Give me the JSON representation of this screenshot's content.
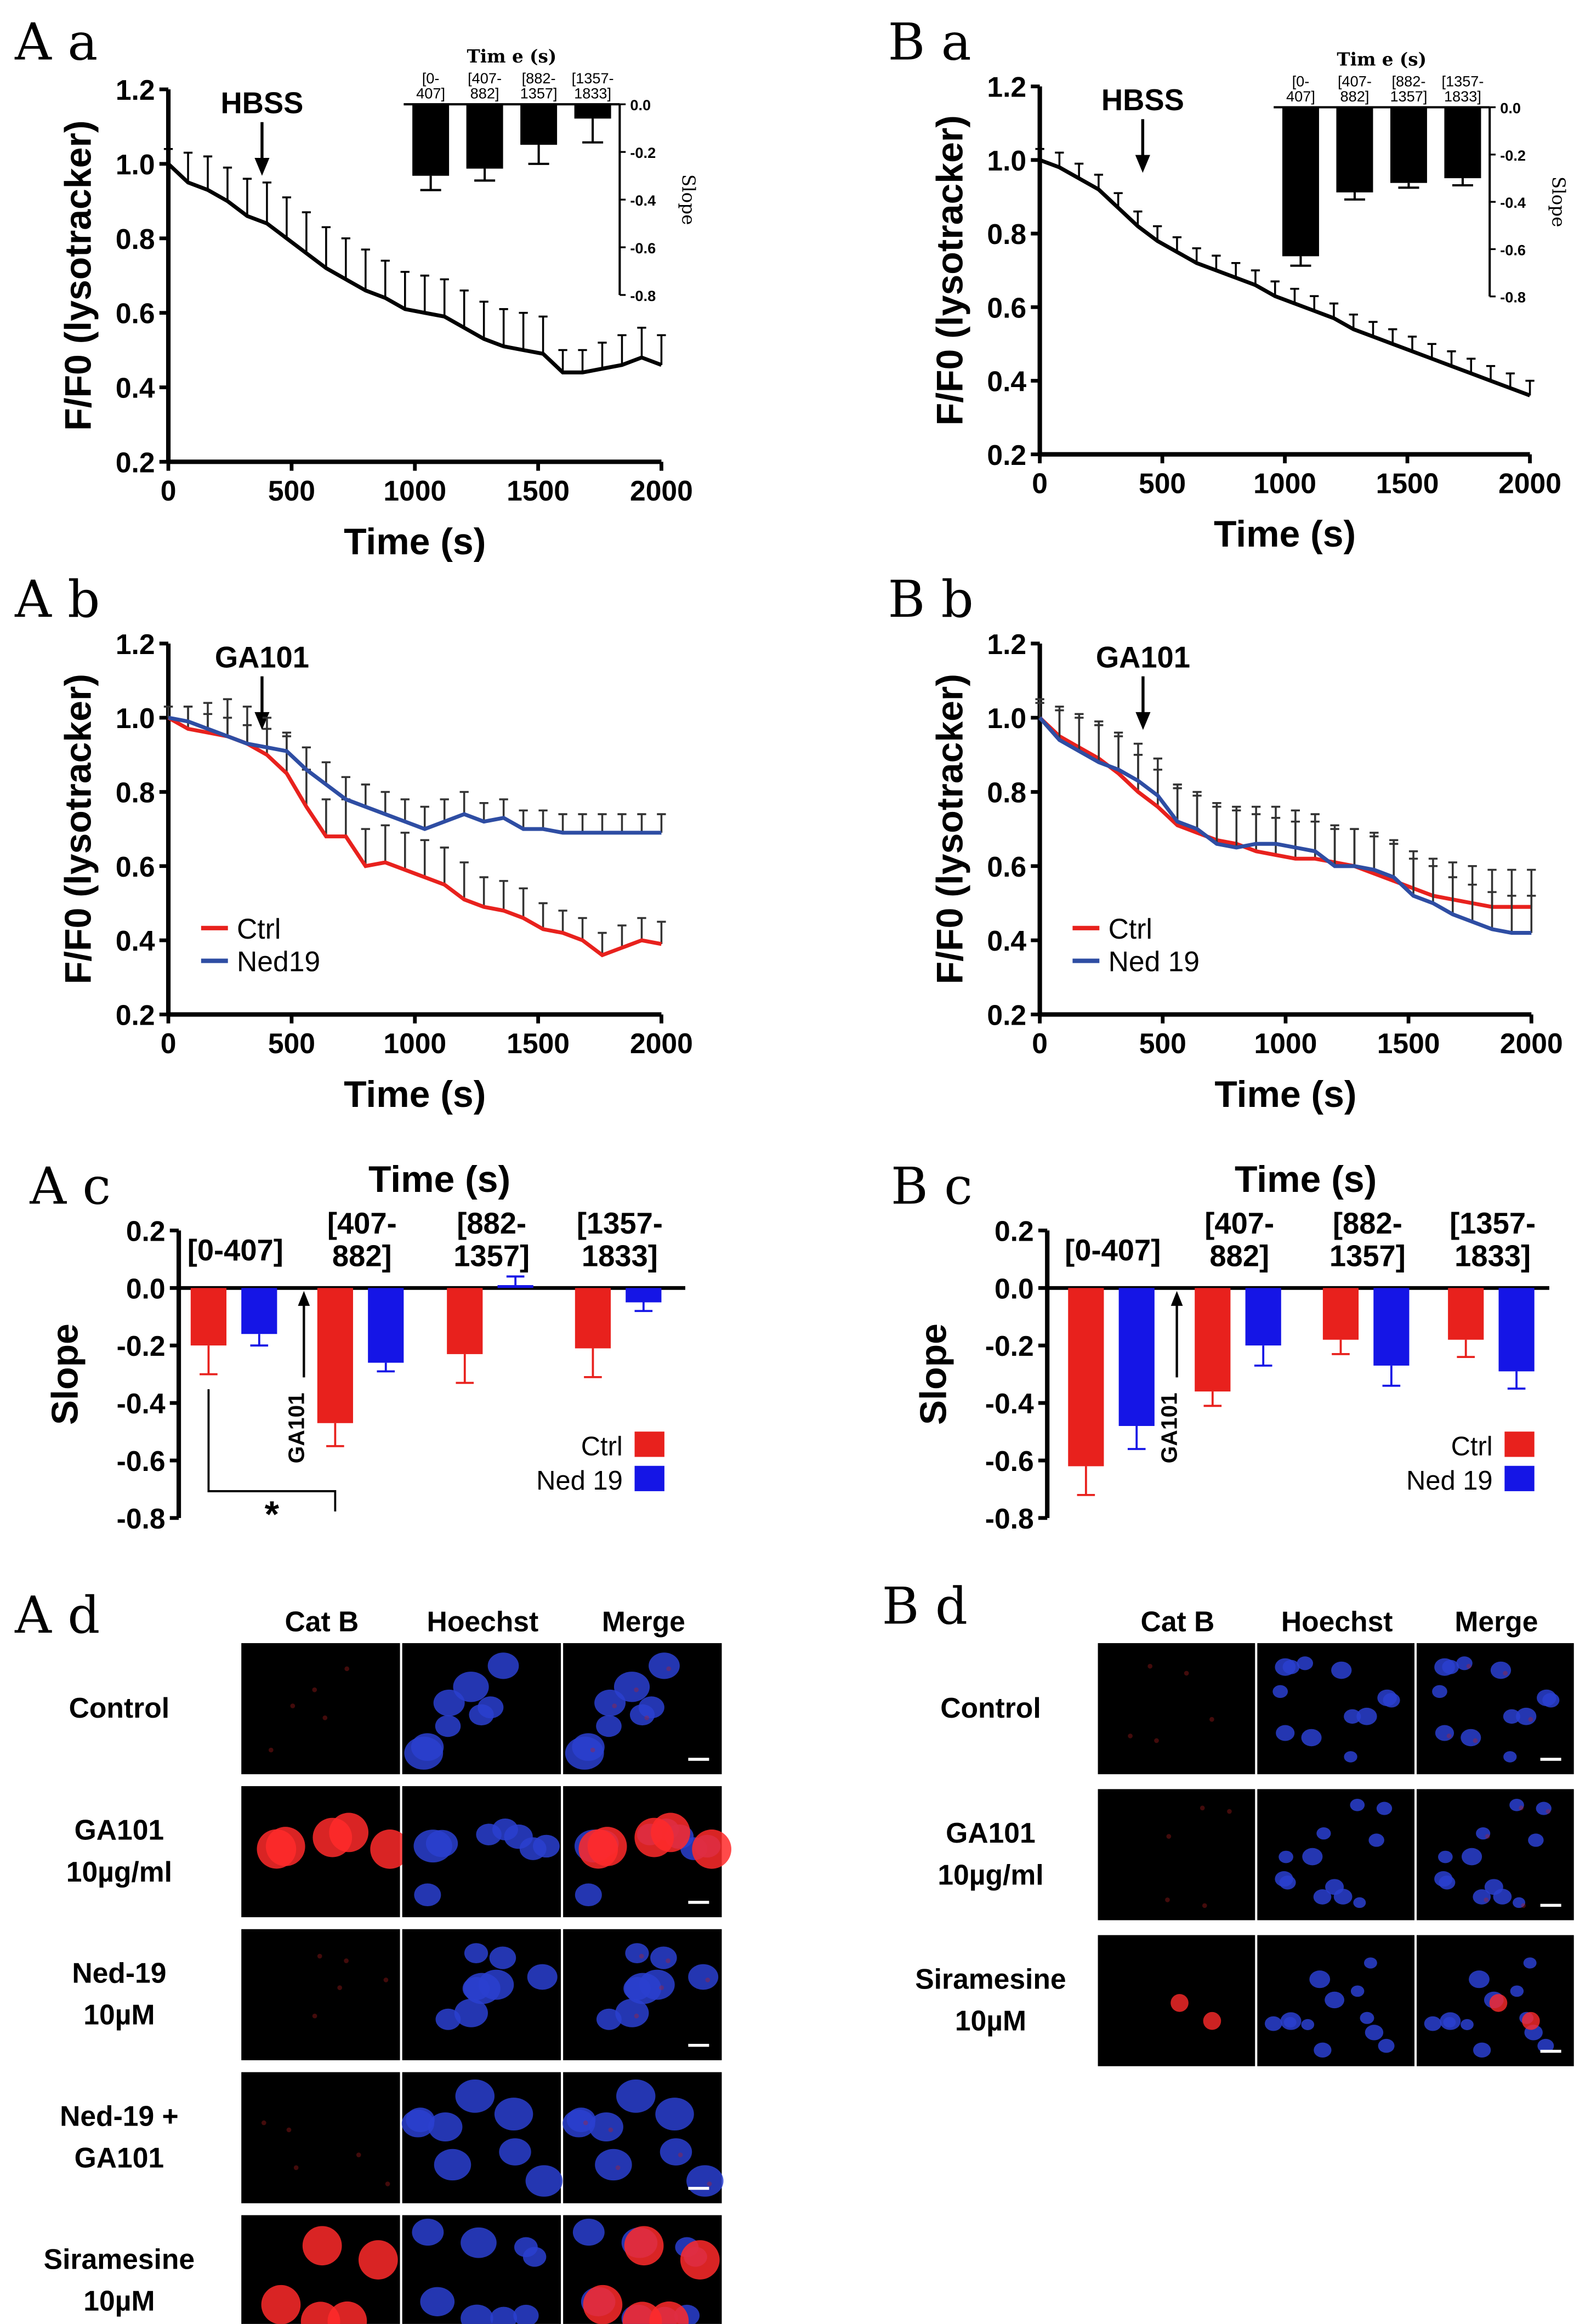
{
  "colors": {
    "ctrl": "#e8211d",
    "ned_line": "#2e4da3",
    "ned_bar": "#1515e6",
    "black": "#000000"
  },
  "panels": {
    "Aa": "A a",
    "Ab": "A b",
    "Ac": "A c",
    "Ad": "A d",
    "Ba": "B a",
    "Bb": "B b",
    "Bc": "B c",
    "Bd": "B d"
  },
  "chart_data": [
    {
      "id": "Aa",
      "type": "line",
      "xlabel": "Time (s)",
      "ylabel": "F/F0 (lysotracker)",
      "xlim": [
        0,
        2000
      ],
      "ylim": [
        0.2,
        1.2
      ],
      "xticks": [
        "0",
        "500",
        "1000",
        "1500",
        "2000"
      ],
      "yticks": [
        "0.2",
        "0.4",
        "0.6",
        "0.8",
        "1.0",
        "1.2"
      ],
      "annotation": {
        "label": "HBSS",
        "x": 380
      },
      "series": [
        {
          "name": "",
          "color": "#000000",
          "x": [
            0,
            80,
            160,
            240,
            320,
            400,
            480,
            560,
            640,
            720,
            800,
            880,
            960,
            1040,
            1120,
            1200,
            1280,
            1360,
            1440,
            1520,
            1600,
            1680,
            1760,
            1840,
            1920,
            2000
          ],
          "y": [
            1.0,
            0.95,
            0.93,
            0.9,
            0.86,
            0.84,
            0.8,
            0.76,
            0.72,
            0.69,
            0.66,
            0.64,
            0.61,
            0.6,
            0.59,
            0.56,
            0.53,
            0.51,
            0.5,
            0.49,
            0.44,
            0.44,
            0.45,
            0.46,
            0.48,
            0.46
          ],
          "err": [
            0.04,
            0.08,
            0.09,
            0.09,
            0.1,
            0.11,
            0.11,
            0.11,
            0.11,
            0.11,
            0.11,
            0.1,
            0.1,
            0.1,
            0.1,
            0.1,
            0.1,
            0.1,
            0.1,
            0.1,
            0.06,
            0.06,
            0.07,
            0.08,
            0.08,
            0.08
          ]
        }
      ],
      "inset": {
        "title": "Tim e (s)",
        "ylabel": "Slope",
        "ylim": [
          -0.8,
          0.0
        ],
        "yticks": [
          "0.0",
          "-0.2",
          "-0.4",
          "-0.6",
          "-0.8"
        ],
        "categories": [
          "[0-\n407]",
          "[407-\n882]",
          "[882-\n1357]",
          "[1357-\n1833]"
        ],
        "values": [
          -0.3,
          -0.27,
          -0.17,
          -0.06
        ],
        "err": [
          0.06,
          0.05,
          0.08,
          0.1
        ]
      }
    },
    {
      "id": "Ba",
      "type": "line",
      "xlabel": "Time (s)",
      "ylabel": "F/F0 (lysotracker)",
      "xlim": [
        0,
        2000
      ],
      "ylim": [
        0.2,
        1.2
      ],
      "xticks": [
        "0",
        "500",
        "1000",
        "1500",
        "2000"
      ],
      "yticks": [
        "0.2",
        "0.4",
        "0.6",
        "0.8",
        "1.0",
        "1.2"
      ],
      "annotation": {
        "label": "HBSS",
        "x": 420
      },
      "series": [
        {
          "name": "",
          "color": "#000000",
          "x": [
            0,
            80,
            160,
            240,
            320,
            400,
            480,
            560,
            640,
            720,
            800,
            880,
            960,
            1040,
            1120,
            1200,
            1280,
            1360,
            1440,
            1520,
            1600,
            1680,
            1760,
            1840,
            1920,
            2000
          ],
          "y": [
            1.0,
            0.98,
            0.95,
            0.92,
            0.87,
            0.82,
            0.78,
            0.75,
            0.72,
            0.7,
            0.68,
            0.66,
            0.63,
            0.61,
            0.59,
            0.57,
            0.54,
            0.52,
            0.5,
            0.48,
            0.46,
            0.44,
            0.42,
            0.4,
            0.38,
            0.36
          ],
          "err": [
            0.03,
            0.04,
            0.04,
            0.04,
            0.04,
            0.04,
            0.04,
            0.04,
            0.04,
            0.04,
            0.04,
            0.04,
            0.04,
            0.04,
            0.04,
            0.04,
            0.04,
            0.04,
            0.04,
            0.04,
            0.04,
            0.04,
            0.04,
            0.04,
            0.04,
            0.04
          ]
        }
      ],
      "inset": {
        "title": "Tim e (s)",
        "ylabel": "Slope",
        "ylim": [
          -0.8,
          0.0
        ],
        "yticks": [
          "0.0",
          "-0.2",
          "-0.4",
          "-0.6",
          "-0.8"
        ],
        "categories": [
          "[0-\n407]",
          "[407-\n882]",
          "[882-\n1357]",
          "[1357-\n1833]"
        ],
        "values": [
          -0.63,
          -0.36,
          -0.32,
          -0.3
        ],
        "err": [
          0.04,
          0.03,
          0.02,
          0.03
        ]
      }
    },
    {
      "id": "Ab",
      "type": "line",
      "xlabel": "Time (s)",
      "ylabel": "F/F0 (lysotracker)",
      "xlim": [
        0,
        2000
      ],
      "ylim": [
        0.2,
        1.2
      ],
      "xticks": [
        "0",
        "500",
        "1000",
        "1500",
        "2000"
      ],
      "yticks": [
        "0.2",
        "0.4",
        "0.6",
        "0.8",
        "1.0",
        "1.2"
      ],
      "annotation": {
        "label": "GA101",
        "x": 380
      },
      "legend": [
        "Ctrl",
        "Ned19"
      ],
      "series": [
        {
          "name": "Ctrl",
          "color": "#e8211d",
          "x": [
            0,
            80,
            160,
            240,
            320,
            400,
            480,
            560,
            640,
            720,
            800,
            880,
            960,
            1040,
            1120,
            1200,
            1280,
            1360,
            1440,
            1520,
            1600,
            1680,
            1760,
            1840,
            1920,
            2000
          ],
          "y": [
            1.0,
            0.97,
            0.96,
            0.95,
            0.93,
            0.9,
            0.85,
            0.76,
            0.68,
            0.68,
            0.6,
            0.61,
            0.59,
            0.57,
            0.55,
            0.51,
            0.49,
            0.48,
            0.46,
            0.43,
            0.42,
            0.4,
            0.36,
            0.38,
            0.4,
            0.39
          ],
          "err": [
            0.03,
            0.06,
            0.08,
            0.1,
            0.1,
            0.1,
            0.1,
            0.1,
            0.1,
            0.1,
            0.1,
            0.1,
            0.1,
            0.1,
            0.1,
            0.1,
            0.08,
            0.08,
            0.08,
            0.07,
            0.06,
            0.06,
            0.06,
            0.06,
            0.06,
            0.06
          ]
        },
        {
          "name": "Ned19",
          "color": "#2e4da3",
          "x": [
            0,
            80,
            160,
            240,
            320,
            400,
            480,
            560,
            640,
            720,
            800,
            880,
            960,
            1040,
            1120,
            1200,
            1280,
            1360,
            1440,
            1520,
            1600,
            1680,
            1760,
            1840,
            1920,
            2000
          ],
          "y": [
            1.0,
            0.99,
            0.97,
            0.95,
            0.93,
            0.92,
            0.91,
            0.86,
            0.82,
            0.78,
            0.76,
            0.74,
            0.72,
            0.7,
            0.72,
            0.74,
            0.72,
            0.73,
            0.7,
            0.7,
            0.69,
            0.69,
            0.69,
            0.69,
            0.69,
            0.69
          ],
          "err": [
            0.03,
            0.04,
            0.04,
            0.05,
            0.05,
            0.05,
            0.05,
            0.06,
            0.06,
            0.06,
            0.06,
            0.06,
            0.06,
            0.06,
            0.06,
            0.06,
            0.05,
            0.05,
            0.05,
            0.05,
            0.05,
            0.05,
            0.05,
            0.05,
            0.05,
            0.05
          ]
        }
      ]
    },
    {
      "id": "Bb",
      "type": "line",
      "xlabel": "Time (s)",
      "ylabel": "F/F0 (lysotracker)",
      "xlim": [
        0,
        2000
      ],
      "ylim": [
        0.2,
        1.2
      ],
      "xticks": [
        "0",
        "500",
        "1000",
        "1500",
        "2000"
      ],
      "yticks": [
        "0.2",
        "0.4",
        "0.6",
        "0.8",
        "1.0",
        "1.2"
      ],
      "annotation": {
        "label": "GA101",
        "x": 420
      },
      "legend": [
        "Ctrl",
        "Ned 19"
      ],
      "series": [
        {
          "name": "Ctrl",
          "color": "#e8211d",
          "x": [
            0,
            80,
            160,
            240,
            320,
            400,
            480,
            560,
            640,
            720,
            800,
            880,
            960,
            1040,
            1120,
            1200,
            1280,
            1360,
            1440,
            1520,
            1600,
            1680,
            1760,
            1840,
            1920,
            2000
          ],
          "y": [
            1.0,
            0.95,
            0.92,
            0.89,
            0.85,
            0.8,
            0.76,
            0.71,
            0.69,
            0.67,
            0.66,
            0.64,
            0.63,
            0.62,
            0.62,
            0.61,
            0.6,
            0.58,
            0.56,
            0.54,
            0.52,
            0.51,
            0.5,
            0.49,
            0.49,
            0.49
          ],
          "err": [
            0.04,
            0.08,
            0.09,
            0.1,
            0.1,
            0.1,
            0.1,
            0.1,
            0.1,
            0.1,
            0.1,
            0.1,
            0.1,
            0.1,
            0.1,
            0.1,
            0.1,
            0.1,
            0.1,
            0.1,
            0.1,
            0.1,
            0.1,
            0.1,
            0.1,
            0.1
          ]
        },
        {
          "name": "Ned 19",
          "color": "#2e4da3",
          "x": [
            0,
            80,
            160,
            240,
            320,
            400,
            480,
            560,
            640,
            720,
            800,
            880,
            960,
            1040,
            1120,
            1200,
            1280,
            1360,
            1440,
            1520,
            1600,
            1680,
            1760,
            1840,
            1920,
            2000
          ],
          "y": [
            1.0,
            0.94,
            0.91,
            0.88,
            0.86,
            0.83,
            0.79,
            0.72,
            0.7,
            0.66,
            0.65,
            0.66,
            0.66,
            0.65,
            0.64,
            0.6,
            0.6,
            0.59,
            0.57,
            0.52,
            0.5,
            0.47,
            0.45,
            0.43,
            0.42,
            0.42
          ],
          "err": [
            0.05,
            0.08,
            0.09,
            0.1,
            0.1,
            0.1,
            0.1,
            0.1,
            0.1,
            0.1,
            0.1,
            0.1,
            0.1,
            0.1,
            0.1,
            0.1,
            0.1,
            0.1,
            0.1,
            0.1,
            0.1,
            0.1,
            0.1,
            0.1,
            0.1,
            0.1
          ]
        }
      ]
    },
    {
      "id": "Ac",
      "type": "bar",
      "title": "Time (s)",
      "ylabel": "Slope",
      "ylim": [
        -0.8,
        0.2
      ],
      "yticks": [
        "0.2",
        "0.0",
        "-0.2",
        "-0.4",
        "-0.6",
        "-0.8"
      ],
      "categories": [
        "[0-407]",
        "[407-\n882]",
        "[882-\n1357]",
        "[1357-\n1833]"
      ],
      "annotation": {
        "label": "GA101"
      },
      "significance": "*",
      "legend": [
        "Ctrl",
        "Ned 19"
      ],
      "series": [
        {
          "name": "Ctrl",
          "color": "#e8211d",
          "values": [
            -0.2,
            -0.47,
            -0.23,
            -0.21
          ],
          "err": [
            0.1,
            0.08,
            0.1,
            0.1
          ]
        },
        {
          "name": "Ned 19",
          "color": "#1515e6",
          "values": [
            -0.16,
            -0.26,
            0.01,
            -0.05
          ],
          "err": [
            0.04,
            0.03,
            0.03,
            0.03
          ]
        }
      ]
    },
    {
      "id": "Bc",
      "type": "bar",
      "title": "Time (s)",
      "ylabel": "Slope",
      "ylim": [
        -0.8,
        0.2
      ],
      "yticks": [
        "0.2",
        "0.0",
        "-0.2",
        "-0.4",
        "-0.6",
        "-0.8"
      ],
      "categories": [
        "[0-407]",
        "[407-\n882]",
        "[882-\n1357]",
        "[1357-\n1833]"
      ],
      "annotation": {
        "label": "GA101"
      },
      "legend": [
        "Ctrl",
        "Ned 19"
      ],
      "series": [
        {
          "name": "Ctrl",
          "color": "#e8211d",
          "values": [
            -0.62,
            -0.36,
            -0.18,
            -0.18
          ],
          "err": [
            0.1,
            0.05,
            0.05,
            0.06
          ]
        },
        {
          "name": "Ned 19",
          "color": "#1515e6",
          "values": [
            -0.48,
            -0.2,
            -0.27,
            -0.29
          ],
          "err": [
            0.08,
            0.07,
            0.07,
            0.06
          ]
        }
      ]
    }
  ],
  "micrographs": {
    "A": {
      "columns": [
        "Cat B",
        "Hoechst",
        "Merge"
      ],
      "rows": [
        {
          "label": "Control",
          "red": "faint"
        },
        {
          "label": "GA101\n10µg/ml",
          "red": "strong"
        },
        {
          "label": "Ned-19\n10µM",
          "red": "faint"
        },
        {
          "label": "Ned-19 +\nGA101",
          "red": "faint"
        },
        {
          "label": "Siramesine\n10µM",
          "red": "strong"
        }
      ]
    },
    "B": {
      "columns": [
        "Cat B",
        "Hoechst",
        "Merge"
      ],
      "rows": [
        {
          "label": "Control",
          "red": "faint"
        },
        {
          "label": "GA101\n10µg/ml",
          "red": "faint"
        },
        {
          "label": "Siramesine\n10µM",
          "red": "moderate"
        }
      ]
    }
  }
}
